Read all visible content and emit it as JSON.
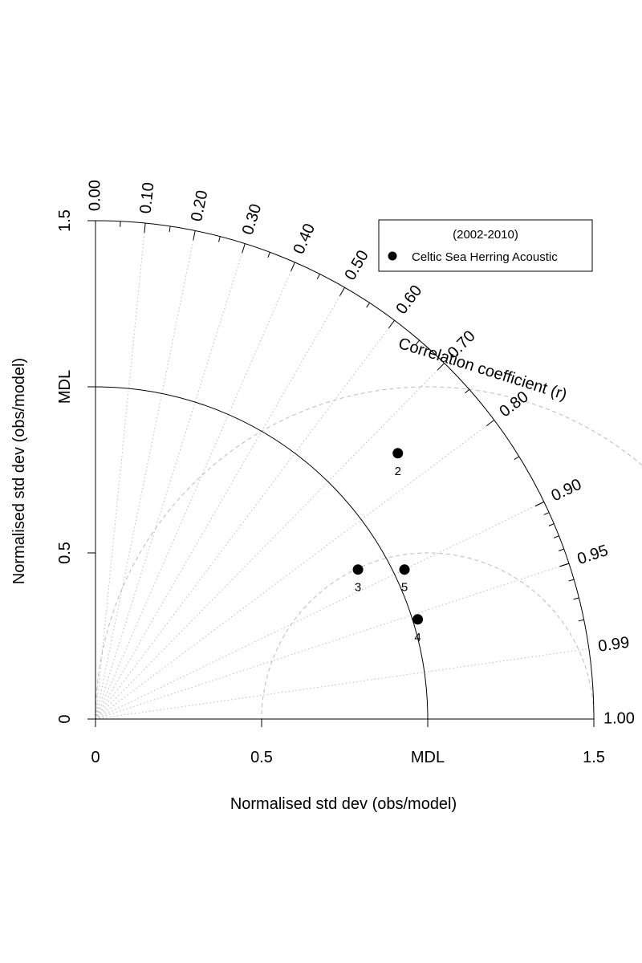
{
  "chart_data": {
    "type": "scatter",
    "subtype": "taylor-diagram",
    "xlabel": "Normalised std dev (obs/model)",
    "ylabel": "Normalised std dev (obs/model)",
    "arc_label": "Correlation coefficient (r)",
    "x_ticks": [
      "0",
      "0.5",
      "MDL",
      "1.5"
    ],
    "y_ticks": [
      "0",
      "0.5",
      "MDL",
      "1.5"
    ],
    "x_tick_values": [
      0,
      0.5,
      1.0,
      1.5
    ],
    "y_tick_values": [
      0,
      0.5,
      1.0,
      1.5
    ],
    "xlim": [
      0,
      1.5
    ],
    "ylim": [
      0,
      1.5
    ],
    "correlation_labels": [
      "0.00",
      "0.10",
      "0.20",
      "0.30",
      "0.40",
      "0.50",
      "0.60",
      "0.70",
      "0.80",
      "0.90",
      "0.95",
      "0.99",
      "1.00"
    ],
    "correlation_values": [
      0.0,
      0.1,
      0.2,
      0.3,
      0.4,
      0.5,
      0.6,
      0.7,
      0.8,
      0.9,
      0.95,
      0.99,
      1.0
    ],
    "rms_contours": [
      0.5,
      1.0
    ],
    "legend": {
      "title": "(2002-2010)",
      "entries": [
        "Celtic Sea Herring Acoustic"
      ],
      "placement": "top-right"
    },
    "points": [
      {
        "label": "2",
        "x": 0.91,
        "y": 0.8
      },
      {
        "label": "3",
        "x": 0.79,
        "y": 0.45
      },
      {
        "label": "5",
        "x": 0.93,
        "y": 0.45
      },
      {
        "label": "4",
        "x": 0.97,
        "y": 0.3
      }
    ],
    "colors": {
      "points": "#000000",
      "grid": "#bbbbbb",
      "axes": "#000000"
    }
  }
}
